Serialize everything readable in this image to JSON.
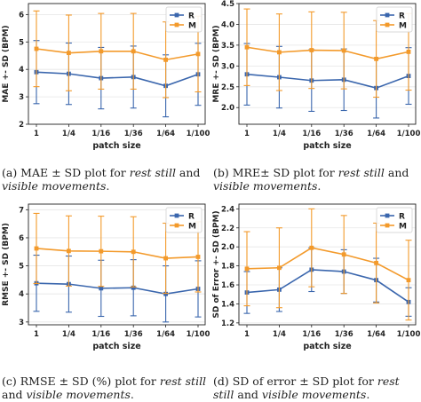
{
  "chart_data": [
    {
      "type": "line",
      "categories": [
        "1",
        "1/4",
        "1/16",
        "1/36",
        "1/64",
        "1/100"
      ],
      "xlabel": "patch size",
      "ylabel": "MAE +- SD (BPM)",
      "ylim": [
        2.0,
        6.4
      ],
      "yticks": [
        2,
        3,
        4,
        5,
        6
      ],
      "legend_position": "top-right",
      "series": [
        {
          "name": "R",
          "color": "#3a66ad",
          "values": [
            3.9,
            3.84,
            3.68,
            3.72,
            3.4,
            3.82
          ],
          "sd": [
            1.15,
            1.12,
            1.12,
            1.13,
            1.13,
            1.13
          ]
        },
        {
          "name": "M",
          "color": "#f39a2b",
          "values": [
            4.75,
            4.6,
            4.66,
            4.66,
            4.35,
            4.56
          ],
          "sd": [
            1.38,
            1.38,
            1.38,
            1.38,
            1.38,
            1.38
          ]
        }
      ],
      "caption": {
        "pre": "(a) MAE ± SD plot for ",
        "em1": "rest still",
        "mid": " and ",
        "em2": "visible movements",
        "post": "."
      }
    },
    {
      "type": "line",
      "categories": [
        "1",
        "1/4",
        "1/16",
        "1/36",
        "1/64",
        "1/100"
      ],
      "xlabel": "patch size",
      "ylabel": "MRE +- SD (BPM)",
      "ylim": [
        1.6,
        4.5
      ],
      "yticks": [
        1.5,
        2.0,
        2.5,
        3.0,
        3.5,
        4.0,
        4.5
      ],
      "legend_position": "top-right",
      "series": [
        {
          "name": "R",
          "color": "#3a66ad",
          "values": [
            2.8,
            2.73,
            2.65,
            2.67,
            2.47,
            2.76
          ],
          "sd": [
            0.74,
            0.74,
            0.74,
            0.74,
            0.72,
            0.68
          ]
        },
        {
          "name": "M",
          "color": "#f39a2b",
          "values": [
            3.45,
            3.33,
            3.38,
            3.37,
            3.17,
            3.34
          ],
          "sd": [
            0.92,
            0.92,
            0.92,
            0.92,
            0.92,
            0.92
          ]
        }
      ],
      "caption": {
        "pre": "(b) MRE± SD plot for ",
        "em1": "rest still",
        "mid": " and ",
        "em2": "visible movements",
        "post": "."
      }
    },
    {
      "type": "line",
      "categories": [
        "1",
        "1/4",
        "1/16",
        "1/36",
        "1/64",
        "1/100"
      ],
      "xlabel": "patch size",
      "ylabel": "RMSE +- SD (BPM)",
      "ylim": [
        2.9,
        7.2
      ],
      "yticks": [
        3,
        4,
        5,
        6,
        7
      ],
      "legend_position": "top-right",
      "series": [
        {
          "name": "R",
          "color": "#3a66ad",
          "values": [
            4.38,
            4.35,
            4.2,
            4.22,
            4.0,
            4.18
          ],
          "sd": [
            1.0,
            1.0,
            1.0,
            1.0,
            1.0,
            1.0
          ]
        },
        {
          "name": "M",
          "color": "#f39a2b",
          "values": [
            5.62,
            5.53,
            5.52,
            5.5,
            5.27,
            5.32
          ],
          "sd": [
            1.25,
            1.25,
            1.25,
            1.25,
            1.25,
            1.25
          ]
        }
      ],
      "caption": {
        "pre": "(c) RMSE ± SD (%) plot for ",
        "em1": "rest still",
        "mid": " and ",
        "em2": "visible movements",
        "post": "."
      }
    },
    {
      "type": "line",
      "categories": [
        "1",
        "1/4",
        "1/16",
        "1/36",
        "1/64",
        "1/100"
      ],
      "xlabel": "patch size",
      "ylabel": "SD of Error +- SD (BPM)",
      "ylim": [
        1.18,
        2.45
      ],
      "yticks": [
        1.2,
        1.4,
        1.6,
        1.8,
        2.0,
        2.2,
        2.4
      ],
      "legend_position": "top-right",
      "series": [
        {
          "name": "R",
          "color": "#3a66ad",
          "values": [
            1.52,
            1.55,
            1.76,
            1.74,
            1.65,
            1.42
          ],
          "sd": [
            0.22,
            0.23,
            0.23,
            0.23,
            0.23,
            0.15
          ]
        },
        {
          "name": "M",
          "color": "#f39a2b",
          "values": [
            1.77,
            1.78,
            1.99,
            1.92,
            1.83,
            1.65
          ],
          "sd": [
            0.39,
            0.42,
            0.41,
            0.41,
            0.42,
            0.42
          ]
        }
      ],
      "caption": {
        "pre": "(d) SD of error ± SD plot for ",
        "em1": "rest still",
        "mid": " and ",
        "em2": "visible movements",
        "post": "."
      }
    }
  ]
}
